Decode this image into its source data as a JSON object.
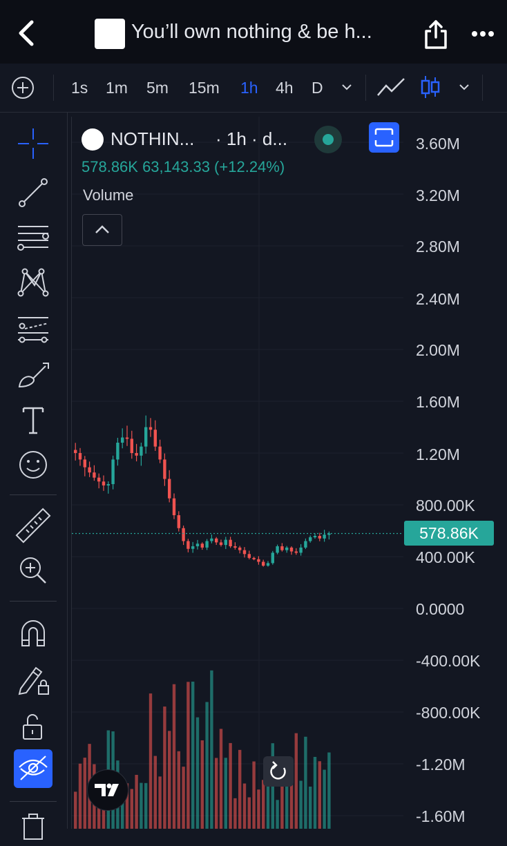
{
  "header": {
    "title": "You’ll own nothing & be h...",
    "icons": [
      "chevron-left-icon",
      "share-icon",
      "more-icon"
    ]
  },
  "timeframes": {
    "items": [
      "1s",
      "1m",
      "5m",
      "15m",
      "1h",
      "4h",
      "D"
    ],
    "active": "1h"
  },
  "legend": {
    "symbol": "NOTHIN...",
    "interval": "· 1h · d...",
    "values": "578.86K  63,143.33 (+12.24%)",
    "volume_label": "Volume"
  },
  "price_scale": {
    "labels": [
      "3.60M",
      "3.20M",
      "2.80M",
      "2.40M",
      "2.00M",
      "1.60M",
      "1.20M",
      "800.00K",
      "400.00K",
      "0.0000",
      "-400.00K",
      "-800.00K",
      "-1.20M",
      "-1.60M"
    ],
    "current_price": "578.86K"
  },
  "colors": {
    "up": "#26a69a",
    "down": "#ef5350",
    "accent": "#2962ff",
    "background": "#131722"
  },
  "chart_data": {
    "type": "candlestick",
    "y_axis_ticks": [
      3600000,
      3200000,
      2800000,
      2400000,
      2000000,
      1600000,
      1200000,
      800000,
      400000,
      0,
      -400000,
      -800000,
      -1200000,
      -1600000
    ],
    "last_price": 578860,
    "close": [
      1200000,
      1150000,
      1090000,
      1050000,
      1010000,
      980000,
      950000,
      960000,
      1150000,
      1280000,
      1320000,
      1310000,
      1200000,
      1180000,
      1250000,
      1400000,
      1380000,
      1250000,
      1150000,
      1000000,
      850000,
      720000,
      620000,
      520000,
      460000,
      480000,
      500000,
      470000,
      520000,
      540000,
      510000,
      490000,
      530000,
      480000,
      470000,
      450000,
      420000,
      390000,
      380000,
      360000,
      330000,
      350000,
      430000,
      480000,
      450000,
      470000,
      440000,
      430000,
      470000,
      520000,
      550000,
      560000,
      540000,
      570000,
      578860
    ],
    "volume_scale_max": 2600000
  }
}
